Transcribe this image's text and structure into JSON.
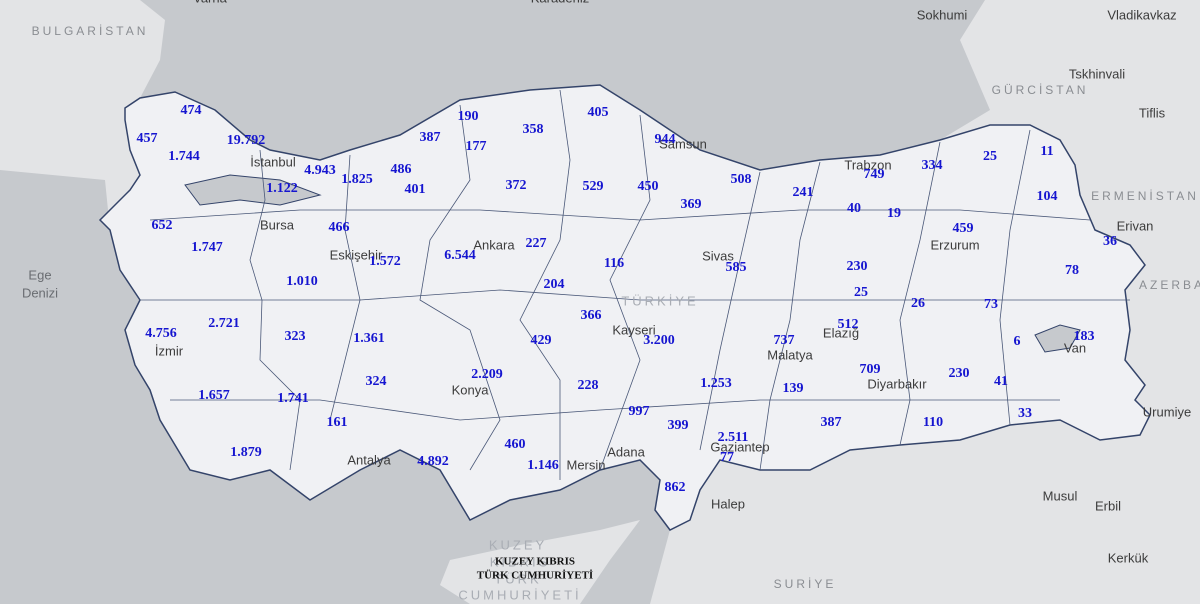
{
  "map_labels": [
    "Varna",
    "Karadeniz",
    "BULGARİSTAN",
    "Sokhumi",
    "Vladikavkaz",
    "Tskhinvali",
    "GÜRCİSTAN",
    "Tiflis",
    "ERMENİSTAN",
    "Erivan",
    "AZERBA",
    "Ege",
    "Denizi",
    "Urumiye",
    "Musul",
    "Erbil",
    "Kerkük",
    "SURİYE",
    "Halep",
    "KUZEY",
    "KIBRIS",
    "TÜRK",
    "CUMHURİYETİ",
    "İstanbul",
    "Bursa",
    "Eskişehir",
    "Ankara",
    "İzmir",
    "Konya",
    "Antalya",
    "Mersin",
    "Adana",
    "Gaziantep",
    "Kayseri",
    "Sivas",
    "Malatya",
    "Elazığ",
    "Diyarbakır",
    "Erzurum",
    "Van",
    "Trabzon",
    "Samsun",
    "TÜRKİYE"
  ],
  "cyprus_label": [
    "KUZEY KIBRIS",
    "TÜRK CUMHURİYETİ"
  ],
  "province_counts": [
    "474",
    "457",
    "19.792",
    "1.744",
    "4.943",
    "1.825",
    "486",
    "1.122",
    "401",
    "387",
    "190",
    "177",
    "358",
    "405",
    "944",
    "372",
    "529",
    "450",
    "508",
    "749",
    "334",
    "25",
    "11",
    "241",
    "369",
    "40",
    "19",
    "104",
    "459",
    "36",
    "78",
    "652",
    "1.747",
    "466",
    "1.572",
    "6.544",
    "227",
    "116",
    "585",
    "230",
    "25",
    "204",
    "1.010",
    "26",
    "73",
    "183",
    "6",
    "4.756",
    "2.721",
    "323",
    "1.361",
    "366",
    "429",
    "3.200",
    "737",
    "512",
    "709",
    "230",
    "41",
    "324",
    "2.209",
    "228",
    "1.253",
    "139",
    "1.657",
    "1.741",
    "161",
    "997",
    "399",
    "387",
    "110",
    "33",
    "2.511",
    "77",
    "460",
    "1.879",
    "4.892",
    "1.146",
    "862"
  ]
}
